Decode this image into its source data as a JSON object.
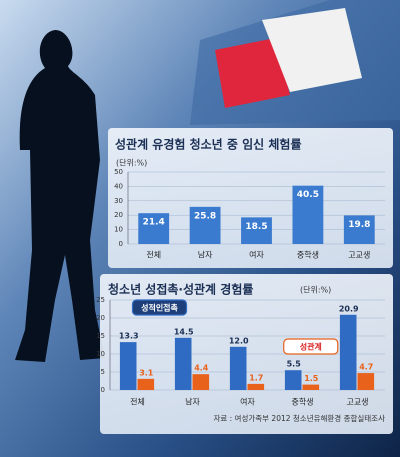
{
  "chart_data": [
    {
      "type": "bar",
      "title": "성관계 유경험 청소년 중 임신 체험률",
      "unit": "(단위:%)",
      "categories": [
        "전체",
        "남자",
        "여자",
        "중학생",
        "고교생"
      ],
      "values": [
        21.4,
        25.8,
        18.5,
        40.5,
        19.8
      ],
      "color": "#3a7bcf",
      "ylim": [
        0,
        50
      ],
      "yticks": [
        0,
        10,
        20,
        30,
        40,
        50
      ],
      "grid": true
    },
    {
      "type": "grouped-bar",
      "title": "청소년 성접촉·성관계 경험률",
      "unit": "(단위:%)",
      "categories": [
        "전체",
        "남자",
        "여자",
        "중학생",
        "고교생"
      ],
      "series": [
        {
          "name": "성적인접촉",
          "color": "#2f6bc2",
          "values": [
            13.3,
            14.5,
            12.0,
            5.5,
            20.9
          ],
          "value_labels": [
            "13.3",
            "14.5",
            "12.0",
            "5.5",
            "20.9"
          ]
        },
        {
          "name": "성관계",
          "color": "#e8621c",
          "values": [
            3.1,
            4.4,
            1.7,
            1.5,
            4.7
          ]
        }
      ],
      "ylim": [
        0,
        25
      ],
      "yticks": [
        0,
        5,
        10,
        15,
        20,
        25
      ],
      "grid": true,
      "source": "자료 : 여성가족부 2012 청소년유해환경 종합실태조사"
    }
  ]
}
